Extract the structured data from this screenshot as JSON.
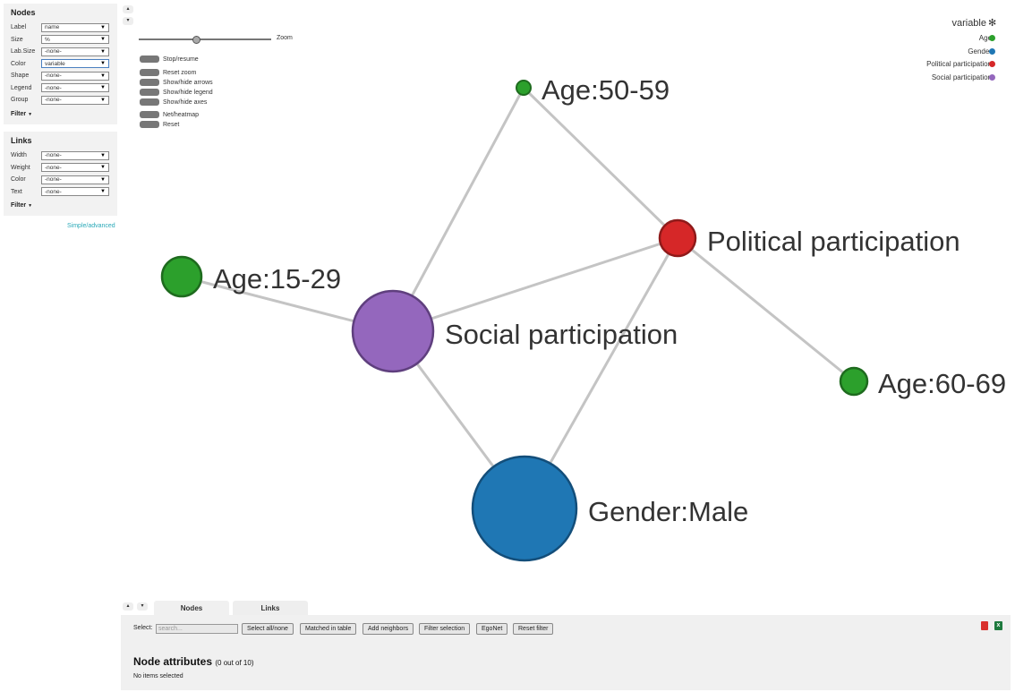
{
  "nodes_panel": {
    "title": "Nodes",
    "rows": [
      {
        "label": "Label",
        "value": "name"
      },
      {
        "label": "Size",
        "value": "%"
      },
      {
        "label": "Lab.Size",
        "value": "-none-"
      },
      {
        "label": "Color",
        "value": "variable"
      },
      {
        "label": "Shape",
        "value": "-none-"
      },
      {
        "label": "Legend",
        "value": "-none-"
      },
      {
        "label": "Group",
        "value": "-none-"
      }
    ],
    "filter": "Filter"
  },
  "links_panel": {
    "title": "Links",
    "rows": [
      {
        "label": "Width",
        "value": "-none-"
      },
      {
        "label": "Weight",
        "value": "-none-"
      },
      {
        "label": "Color",
        "value": "-none-"
      },
      {
        "label": "Text",
        "value": "-none-"
      }
    ],
    "filter": "Filter"
  },
  "simple_advanced": "Simple/advanced",
  "controls": {
    "zoom_label": "Zoom",
    "buttons": [
      "Stop/resume",
      "Reset zoom",
      "Show/hide arrows",
      "Show/hide legend",
      "Show/hide axes",
      "Net/heatmap",
      "Reset"
    ]
  },
  "legend": {
    "title": "variable",
    "star": "✻",
    "items": [
      {
        "label": "Age",
        "color": "#2ca02c"
      },
      {
        "label": "Gender",
        "color": "#1f77b4"
      },
      {
        "label": "Political participation",
        "color": "#d62728"
      },
      {
        "label": "Social participation",
        "color": "#9467bd"
      }
    ]
  },
  "graph": {
    "node_labels": {
      "age_50_59": "Age:50-59",
      "political": "Political participation",
      "age_15_29": "Age:15-29",
      "social": "Social participation",
      "age_60_69": "Age:60-69",
      "gender_male": "Gender:Male"
    },
    "colors": {
      "age": "#2ca02c",
      "gender": "#1f77b4",
      "political": "#d62728",
      "social": "#9467bd",
      "link": "#c4c4c4"
    }
  },
  "bottom": {
    "tabs": [
      "Nodes",
      "Links"
    ],
    "select_label": "Select:",
    "search_placeholder": "search...",
    "buttons": [
      "Select all/none",
      "Matched in table",
      "Add neighbors",
      "Filter selection",
      "EgoNet",
      "Reset filter"
    ],
    "section_title": "Node attributes",
    "section_count": "(0 out of 10)",
    "status": "No items selected"
  }
}
